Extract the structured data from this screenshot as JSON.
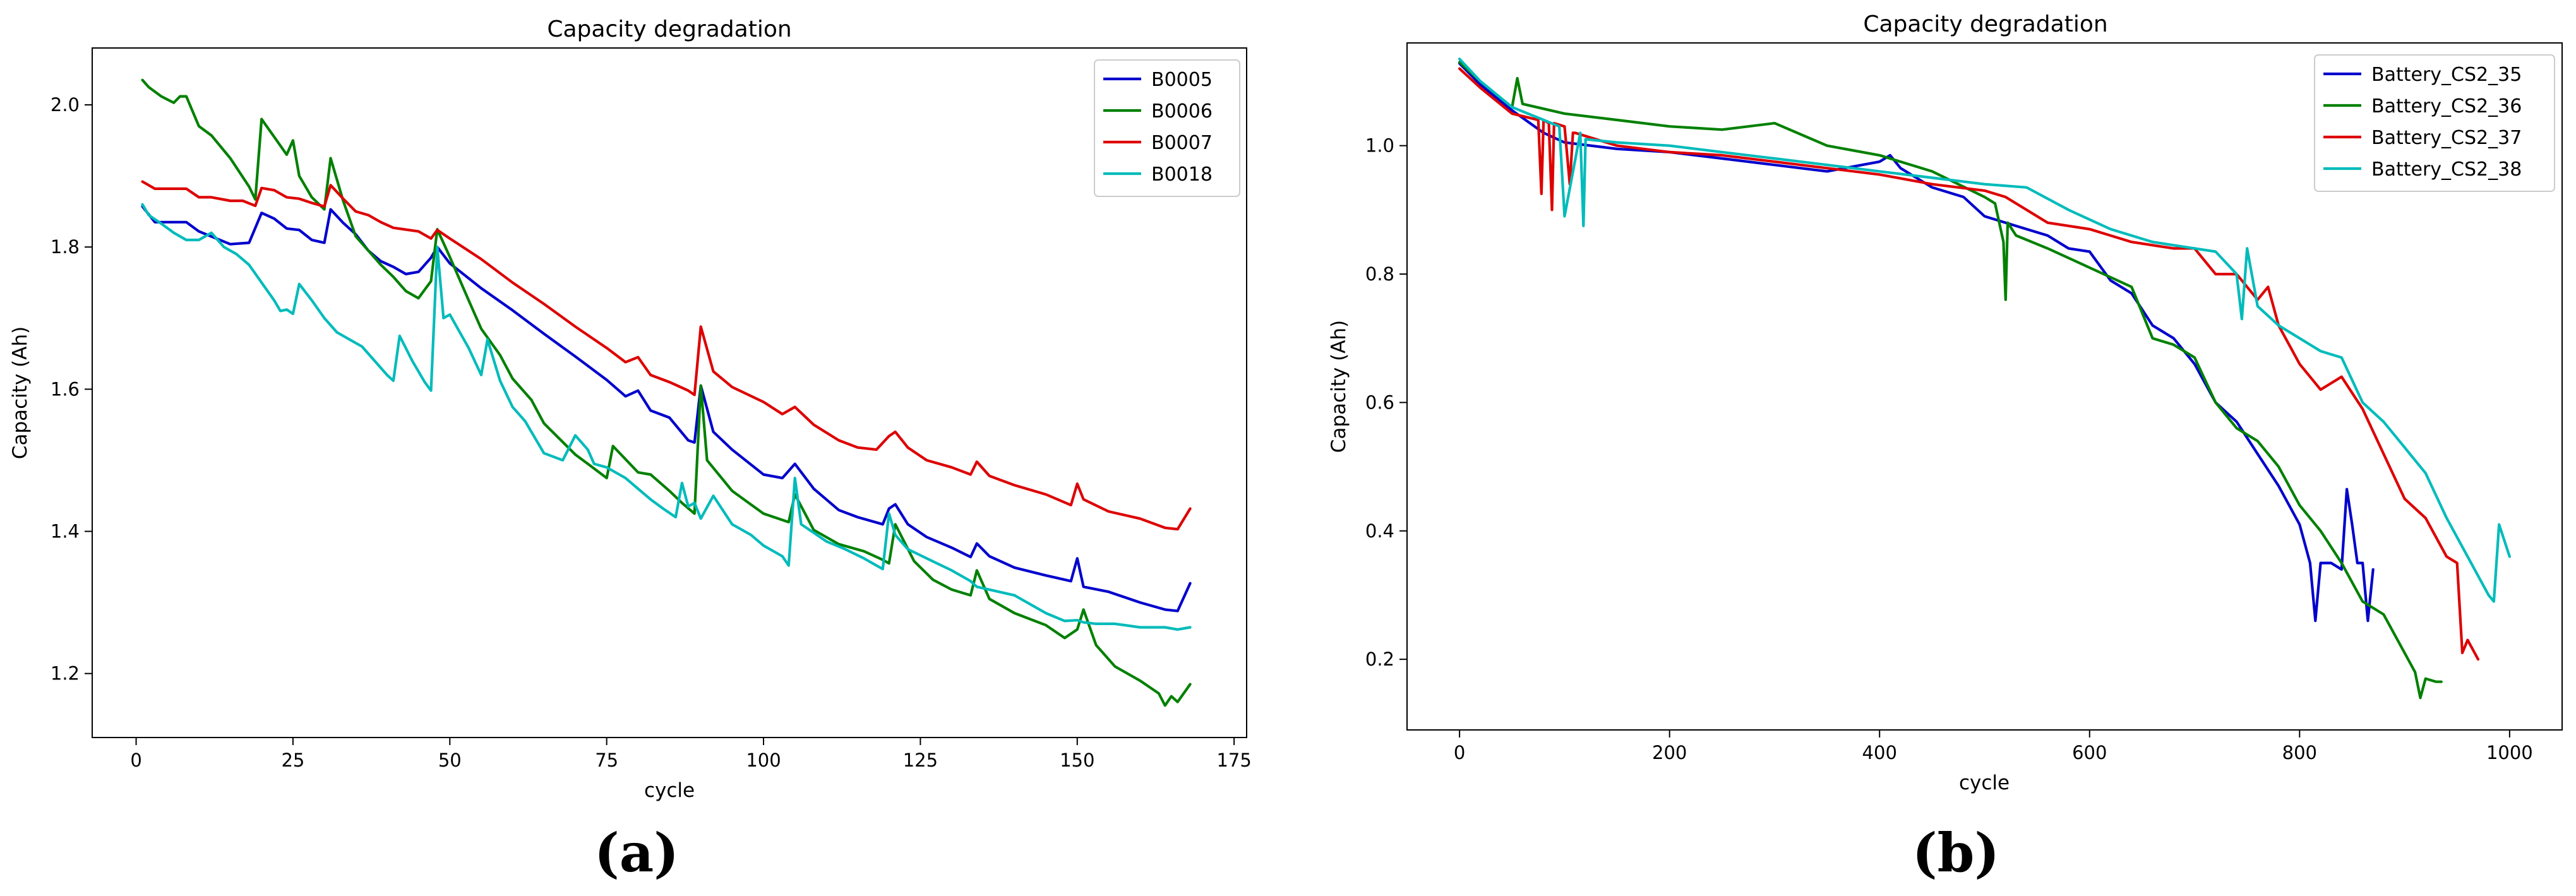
{
  "chart_data": [
    {
      "type": "line",
      "panel_label": "(a)",
      "title": "Capacity degradation",
      "xlabel": "cycle",
      "ylabel": "Capacity (Ah)",
      "xlim": [
        -7,
        177
      ],
      "ylim": [
        1.11,
        2.08
      ],
      "xticks": [
        0,
        25,
        50,
        75,
        100,
        125,
        150,
        175
      ],
      "yticks": [
        1.2,
        1.4,
        1.6,
        1.8,
        2.0
      ],
      "legend_position": "top-right",
      "series": [
        {
          "name": "B0005",
          "color": "#0000cc",
          "x": [
            1,
            3,
            8,
            10,
            15,
            18,
            20,
            22,
            24,
            26,
            28,
            30,
            31,
            33,
            35,
            37,
            39,
            41,
            43,
            45,
            47,
            48,
            50,
            55,
            60,
            65,
            70,
            75,
            78,
            80,
            82,
            85,
            88,
            89,
            90,
            92,
            95,
            100,
            103,
            105,
            108,
            112,
            115,
            119,
            120,
            121,
            123,
            126,
            130,
            133,
            134,
            136,
            140,
            145,
            149,
            150,
            151,
            155,
            160,
            164,
            166,
            168
          ],
          "values": [
            1.857,
            1.835,
            1.835,
            1.822,
            1.804,
            1.806,
            1.848,
            1.84,
            1.826,
            1.824,
            1.81,
            1.806,
            1.853,
            1.834,
            1.818,
            1.795,
            1.78,
            1.772,
            1.762,
            1.765,
            1.785,
            1.8,
            1.777,
            1.742,
            1.711,
            1.678,
            1.646,
            1.613,
            1.59,
            1.598,
            1.57,
            1.56,
            1.528,
            1.525,
            1.605,
            1.54,
            1.515,
            1.48,
            1.475,
            1.495,
            1.46,
            1.43,
            1.42,
            1.41,
            1.432,
            1.438,
            1.41,
            1.392,
            1.377,
            1.364,
            1.383,
            1.365,
            1.349,
            1.338,
            1.33,
            1.362,
            1.322,
            1.315,
            1.3,
            1.29,
            1.288,
            1.327
          ]
        },
        {
          "name": "B0006",
          "color": "#008000",
          "x": [
            1,
            2,
            4,
            6,
            7,
            8,
            10,
            12,
            15,
            18,
            19,
            20,
            22,
            24,
            25,
            26,
            28,
            30,
            31,
            33,
            35,
            37,
            39,
            41,
            43,
            45,
            47,
            48,
            50,
            53,
            55,
            58,
            60,
            63,
            65,
            70,
            72,
            75,
            76,
            80,
            82,
            85,
            87,
            89,
            90,
            91,
            95,
            100,
            104,
            105,
            108,
            112,
            116,
            119,
            120,
            121,
            124,
            127,
            130,
            133,
            134,
            136,
            140,
            145,
            148,
            150,
            151,
            153,
            156,
            160,
            163,
            164,
            165,
            166,
            168
          ],
          "values": [
            2.035,
            2.025,
            2.012,
            2.003,
            2.012,
            2.012,
            1.97,
            1.957,
            1.925,
            1.885,
            1.867,
            1.98,
            1.955,
            1.93,
            1.95,
            1.9,
            1.87,
            1.853,
            1.925,
            1.865,
            1.815,
            1.795,
            1.775,
            1.758,
            1.738,
            1.728,
            1.752,
            1.825,
            1.786,
            1.725,
            1.685,
            1.648,
            1.615,
            1.585,
            1.552,
            1.508,
            1.495,
            1.475,
            1.52,
            1.483,
            1.48,
            1.457,
            1.44,
            1.425,
            1.605,
            1.5,
            1.457,
            1.425,
            1.413,
            1.452,
            1.402,
            1.382,
            1.372,
            1.36,
            1.355,
            1.41,
            1.358,
            1.332,
            1.318,
            1.31,
            1.345,
            1.305,
            1.285,
            1.268,
            1.25,
            1.262,
            1.29,
            1.24,
            1.21,
            1.19,
            1.172,
            1.155,
            1.168,
            1.16,
            1.185
          ]
        },
        {
          "name": "B0007",
          "color": "#dd0000",
          "x": [
            1,
            3,
            8,
            10,
            12,
            15,
            17,
            19,
            20,
            22,
            24,
            26,
            28,
            30,
            31,
            33,
            35,
            37,
            39,
            41,
            45,
            47,
            48,
            50,
            55,
            60,
            65,
            70,
            75,
            78,
            80,
            82,
            85,
            88,
            89,
            90,
            92,
            95,
            100,
            103,
            105,
            108,
            112,
            115,
            118,
            120,
            121,
            123,
            126,
            130,
            133,
            134,
            136,
            140,
            145,
            149,
            150,
            151,
            155,
            160,
            164,
            166,
            168
          ],
          "values": [
            1.892,
            1.882,
            1.882,
            1.87,
            1.87,
            1.865,
            1.865,
            1.858,
            1.883,
            1.88,
            1.87,
            1.868,
            1.862,
            1.857,
            1.887,
            1.868,
            1.85,
            1.845,
            1.835,
            1.827,
            1.822,
            1.812,
            1.824,
            1.812,
            1.783,
            1.75,
            1.72,
            1.688,
            1.658,
            1.638,
            1.645,
            1.62,
            1.61,
            1.598,
            1.592,
            1.688,
            1.625,
            1.603,
            1.582,
            1.565,
            1.575,
            1.55,
            1.528,
            1.518,
            1.515,
            1.534,
            1.54,
            1.518,
            1.5,
            1.49,
            1.48,
            1.498,
            1.478,
            1.465,
            1.452,
            1.437,
            1.467,
            1.445,
            1.428,
            1.418,
            1.405,
            1.403,
            1.432
          ]
        },
        {
          "name": "B0018",
          "color": "#00bbbb",
          "x": [
            1,
            2,
            4,
            6,
            8,
            10,
            12,
            14,
            16,
            18,
            20,
            22,
            23,
            24,
            25,
            26,
            28,
            30,
            32,
            34,
            36,
            38,
            40,
            41,
            42,
            44,
            46,
            47,
            48,
            49,
            50,
            53,
            55,
            56,
            58,
            60,
            62,
            65,
            68,
            70,
            72,
            73,
            75,
            78,
            80,
            82,
            84,
            86,
            87,
            88,
            89,
            90,
            92,
            95,
            98,
            100,
            102,
            103,
            104,
            105,
            106,
            108,
            110,
            113,
            116,
            118,
            119,
            120,
            121,
            123,
            126,
            130,
            133,
            134,
            136,
            140,
            145,
            148,
            150,
            151,
            153,
            156,
            160,
            164,
            166,
            168
          ],
          "values": [
            1.86,
            1.845,
            1.833,
            1.82,
            1.81,
            1.81,
            1.82,
            1.8,
            1.79,
            1.775,
            1.75,
            1.725,
            1.71,
            1.712,
            1.706,
            1.748,
            1.725,
            1.7,
            1.68,
            1.67,
            1.66,
            1.64,
            1.62,
            1.612,
            1.675,
            1.64,
            1.61,
            1.598,
            1.8,
            1.7,
            1.705,
            1.658,
            1.62,
            1.67,
            1.612,
            1.575,
            1.555,
            1.51,
            1.5,
            1.535,
            1.515,
            1.495,
            1.49,
            1.475,
            1.46,
            1.445,
            1.432,
            1.42,
            1.468,
            1.435,
            1.44,
            1.418,
            1.45,
            1.41,
            1.395,
            1.38,
            1.37,
            1.365,
            1.352,
            1.475,
            1.41,
            1.398,
            1.386,
            1.375,
            1.362,
            1.352,
            1.347,
            1.425,
            1.395,
            1.375,
            1.362,
            1.345,
            1.33,
            1.322,
            1.318,
            1.31,
            1.285,
            1.274,
            1.275,
            1.272,
            1.27,
            1.27,
            1.265,
            1.265,
            1.262,
            1.265
          ]
        }
      ]
    },
    {
      "type": "line",
      "panel_label": "(b)",
      "title": "Capacity degradation",
      "xlabel": "cycle",
      "ylabel": "Capacity (Ah)",
      "xlim": [
        -50,
        1050
      ],
      "ylim": [
        0.09,
        1.16
      ],
      "xticks": [
        0,
        200,
        400,
        600,
        800,
        1000
      ],
      "yticks": [
        0.2,
        0.4,
        0.6,
        0.8,
        1.0
      ],
      "legend_position": "top-right",
      "series": [
        {
          "name": "Battery_CS2_35",
          "color": "#0000cc",
          "x": [
            0,
            20,
            50,
            80,
            100,
            150,
            200,
            250,
            300,
            350,
            400,
            410,
            420,
            450,
            480,
            500,
            520,
            540,
            560,
            580,
            600,
            620,
            640,
            660,
            680,
            700,
            720,
            740,
            760,
            780,
            800,
            810,
            815,
            820,
            830,
            840,
            845,
            850,
            855,
            860,
            865,
            870
          ],
          "values": [
            1.128,
            1.095,
            1.055,
            1.02,
            1.005,
            0.995,
            0.99,
            0.98,
            0.97,
            0.96,
            0.975,
            0.985,
            0.965,
            0.935,
            0.92,
            0.89,
            0.88,
            0.87,
            0.86,
            0.84,
            0.835,
            0.79,
            0.77,
            0.72,
            0.7,
            0.66,
            0.6,
            0.57,
            0.52,
            0.47,
            0.41,
            0.35,
            0.26,
            0.35,
            0.35,
            0.34,
            0.465,
            0.41,
            0.35,
            0.35,
            0.26,
            0.34
          ]
        },
        {
          "name": "Battery_CS2_36",
          "color": "#008000",
          "x": [
            0,
            20,
            50,
            55,
            60,
            100,
            150,
            200,
            250,
            300,
            350,
            400,
            450,
            500,
            510,
            518,
            520,
            522,
            530,
            560,
            600,
            640,
            660,
            680,
            700,
            720,
            740,
            760,
            780,
            800,
            820,
            840,
            860,
            880,
            900,
            910,
            915,
            920,
            930,
            935
          ],
          "values": [
            1.13,
            1.1,
            1.06,
            1.105,
            1.065,
            1.05,
            1.04,
            1.03,
            1.025,
            1.035,
            1.0,
            0.985,
            0.96,
            0.92,
            0.91,
            0.85,
            0.76,
            0.88,
            0.86,
            0.84,
            0.81,
            0.78,
            0.7,
            0.69,
            0.67,
            0.6,
            0.56,
            0.54,
            0.5,
            0.44,
            0.4,
            0.35,
            0.29,
            0.27,
            0.21,
            0.18,
            0.14,
            0.17,
            0.165,
            0.165
          ]
        },
        {
          "name": "Battery_CS2_37",
          "color": "#dd0000",
          "x": [
            0,
            20,
            50,
            75,
            78,
            80,
            85,
            88,
            90,
            100,
            105,
            108,
            110,
            150,
            200,
            250,
            300,
            350,
            400,
            450,
            500,
            520,
            560,
            600,
            640,
            680,
            700,
            720,
            740,
            760,
            770,
            780,
            800,
            820,
            840,
            860,
            880,
            900,
            920,
            940,
            950,
            955,
            960,
            970
          ],
          "values": [
            1.12,
            1.09,
            1.05,
            1.04,
            0.925,
            1.04,
            1.035,
            0.9,
            1.035,
            1.03,
            0.94,
            1.02,
            1.02,
            1.0,
            0.99,
            0.985,
            0.975,
            0.965,
            0.955,
            0.94,
            0.93,
            0.92,
            0.88,
            0.87,
            0.85,
            0.84,
            0.84,
            0.8,
            0.8,
            0.76,
            0.78,
            0.72,
            0.66,
            0.62,
            0.64,
            0.59,
            0.52,
            0.45,
            0.42,
            0.36,
            0.35,
            0.21,
            0.23,
            0.2
          ]
        },
        {
          "name": "Battery_CS2_38",
          "color": "#00bbbb",
          "x": [
            0,
            20,
            50,
            80,
            95,
            100,
            115,
            118,
            120,
            150,
            200,
            250,
            300,
            350,
            400,
            450,
            500,
            540,
            580,
            620,
            660,
            700,
            720,
            740,
            745,
            750,
            760,
            780,
            800,
            820,
            840,
            860,
            880,
            900,
            920,
            940,
            960,
            980,
            985,
            990,
            1000
          ],
          "values": [
            1.135,
            1.1,
            1.06,
            1.04,
            1.03,
            0.89,
            1.02,
            0.875,
            1.01,
            1.005,
            1.0,
            0.99,
            0.98,
            0.97,
            0.96,
            0.95,
            0.94,
            0.935,
            0.9,
            0.87,
            0.85,
            0.84,
            0.835,
            0.8,
            0.73,
            0.84,
            0.75,
            0.72,
            0.7,
            0.68,
            0.67,
            0.6,
            0.57,
            0.53,
            0.49,
            0.42,
            0.36,
            0.3,
            0.29,
            0.41,
            0.36
          ]
        }
      ]
    }
  ]
}
